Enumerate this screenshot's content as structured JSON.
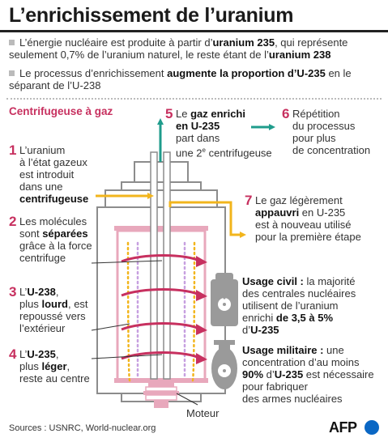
{
  "title": "L’enrichissement de l’uranium",
  "bullets": {
    "b1": {
      "t1": "L’énergie nucléaire est produite à partir d’",
      "s1": "uranium 235",
      "t2": ", qui représente seulement 0,7% de l’uranium naturel, le reste étant de l’",
      "s2": "uranium 238"
    },
    "b2": {
      "t1": "Le processus d’enrichissement ",
      "s1": "augmente la proportion d’U-235",
      "t2": " en le séparant de l’U-238"
    }
  },
  "section_label": "Centrifugeuse à gaz",
  "steps": {
    "s1": {
      "num": "1",
      "l1": "L’uranium",
      "l2": "à l’état gazeux",
      "l3": "est introduit",
      "l4": "dans une",
      "l5": "centrifugeuse"
    },
    "s2": {
      "num": "2",
      "l1": "Les molécules",
      "l2a": "sont ",
      "l2b": "séparées",
      "l3": "grâce à la force",
      "l4": "centrifuge"
    },
    "s3": {
      "num": "3",
      "l1a": "L’",
      "l1b": "U-238",
      "l1c": ",",
      "l2a": "plus ",
      "l2b": "lourd",
      "l2c": ", est",
      "l3": "repoussé vers",
      "l4": "l’extérieur"
    },
    "s4": {
      "num": "4",
      "l1a": "L’",
      "l1b": "U-235",
      "l1c": ",",
      "l2a": "plus ",
      "l2b": "léger",
      "l2c": ",",
      "l3": "reste au centre"
    },
    "s5": {
      "num": "5",
      "l1a": "Le ",
      "l1b": "gaz enrichi",
      "l2": "en U-235",
      "l3": "part dans",
      "l4a": "une 2",
      "l4sup": "e",
      "l4b": " centrifugeuse"
    },
    "s6": {
      "num": "6",
      "l1": "Répétition",
      "l2": "du processus",
      "l3": "pour plus",
      "l4": "de concentration"
    },
    "s7": {
      "num": "7",
      "l1": "Le gaz légèrement",
      "l2a": "appauvri",
      "l2b": " en U-235",
      "l3": "est à nouveau utilisé",
      "l4": "pour la première étape"
    }
  },
  "civil": {
    "h": "Usage civil :",
    "l1t": " la majorité",
    "l2": "des centrales nucléaires",
    "l3": "utilisent de l’uranium",
    "l4a": "enrichi ",
    "l4b": "de 3,5 à 5%",
    "l5a": "d’",
    "l5b": "U-235"
  },
  "military": {
    "h": "Usage militaire :",
    "l1t": " une",
    "l2": "concentration d’au moins",
    "l3a": "90%",
    "l3b": " d’",
    "l3c": "U-235",
    "l3d": " est nécessaire",
    "l4": "pour fabriquer",
    "l5": "des armes nucléaires"
  },
  "motor_label": "Moteur",
  "source": "Sources : USNRC, World-nuclear.org",
  "logo": "AFP",
  "colors": {
    "accent": "#c7305f",
    "teal": "#1f9c8c",
    "yellow": "#f2b51c",
    "outline": "#8c8c8c",
    "inner": "#e8a8bc"
  }
}
